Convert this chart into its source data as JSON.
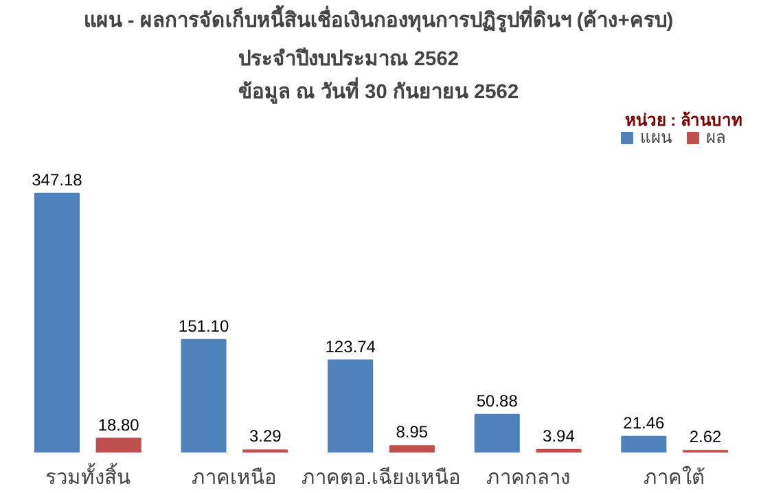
{
  "chart_data": {
    "type": "bar",
    "title": "แผน - ผลการจัดเก็บหนี้สินเชื่อเงินกองทุนการปฏิรูปที่ดินฯ  (ค้าง+ครบ)",
    "subtitle": "ประจำปีงบประมาณ  2562\nข้อมูล ณ วันที่ 30 กันยายน  2562",
    "annotations": [
      "หน่วย : ล้านบาท"
    ],
    "categories": [
      "รวมทั้งสิ้น",
      "ภาคเหนือ",
      "ภาคตอ.เฉียงเหนือ",
      "ภาคกลาง",
      "ภาคใต้"
    ],
    "series": [
      {
        "name": "แผน",
        "color": "#4f81bd",
        "values": [
          347.18,
          151.1,
          123.74,
          50.88,
          21.46
        ],
        "value_labels": [
          "347.18",
          "151.10",
          "123.74",
          "50.88",
          "21.46"
        ]
      },
      {
        "name": "ผล",
        "color": "#c0504d",
        "values": [
          18.8,
          3.29,
          8.95,
          3.94,
          2.62
        ],
        "value_labels": [
          "18.80",
          "3.29",
          "8.95",
          "3.94",
          "2.62"
        ]
      }
    ],
    "legend": "top right",
    "grid": false
  }
}
